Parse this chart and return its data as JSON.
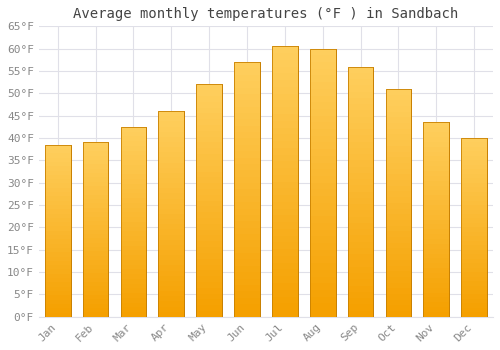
{
  "title": "Average monthly temperatures (°F ) in Sandbach",
  "months": [
    "Jan",
    "Feb",
    "Mar",
    "Apr",
    "May",
    "Jun",
    "Jul",
    "Aug",
    "Sep",
    "Oct",
    "Nov",
    "Dec"
  ],
  "values": [
    38.5,
    39.0,
    42.5,
    46.0,
    52.0,
    57.0,
    60.5,
    60.0,
    56.0,
    51.0,
    43.5,
    40.0
  ],
  "bar_color_top": "#FFD060",
  "bar_color_bottom": "#F5A000",
  "bar_edge_color": "#C88000",
  "ylim": [
    0,
    65
  ],
  "ytick_step": 5,
  "background_color": "#FFFFFF",
  "grid_color": "#E0E0E8",
  "title_fontsize": 10,
  "tick_fontsize": 8,
  "tick_color": "#888888",
  "title_color": "#444444",
  "font_family": "monospace"
}
